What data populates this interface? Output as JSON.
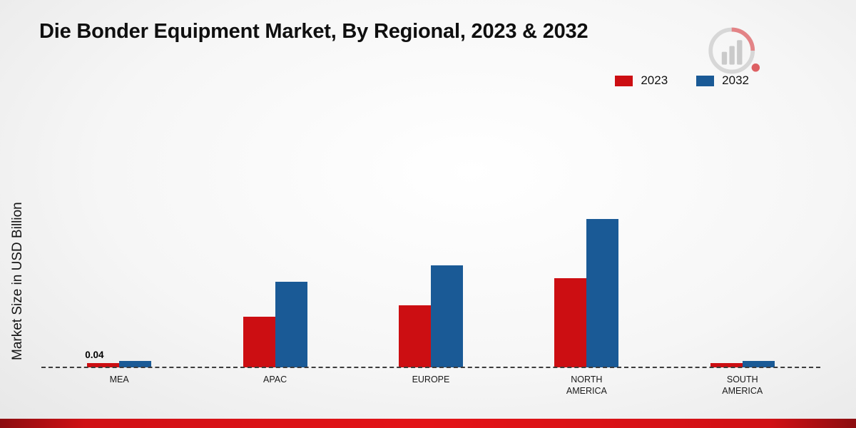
{
  "page": {
    "title": "Die Bonder Equipment Market, By Regional, 2023 & 2032",
    "ylabel": "Market Size in USD Billion"
  },
  "legend": {
    "items": [
      {
        "label": "2023",
        "color": "#cc0e12"
      },
      {
        "label": "2032",
        "color": "#1a5a96"
      }
    ]
  },
  "chart_data": {
    "type": "bar",
    "title": "Die Bonder Equipment Market, By Regional, 2023 & 2032",
    "ylabel": "Market Size in USD Billion",
    "categories": [
      "MEA",
      "APAC",
      "EUROPE",
      "NORTH AMERICA",
      "SOUTH AMERICA"
    ],
    "series": [
      {
        "name": "2023",
        "color": "#cc0e12",
        "values": [
          0.04,
          0.47,
          0.58,
          0.83,
          0.04
        ]
      },
      {
        "name": "2032",
        "color": "#1a5a96",
        "values": [
          0.06,
          0.8,
          0.95,
          1.39,
          0.06
        ]
      }
    ],
    "annotations": [
      {
        "category": "MEA",
        "series": "2023",
        "text": "0.04"
      }
    ],
    "ylim": [
      0,
      1.5
    ],
    "grid": false,
    "legend_position": "top-right",
    "baseline_style": "dashed",
    "accent_bottom_bar_color": "#e31317"
  },
  "logo": {
    "name": "market-research-future-logo"
  }
}
